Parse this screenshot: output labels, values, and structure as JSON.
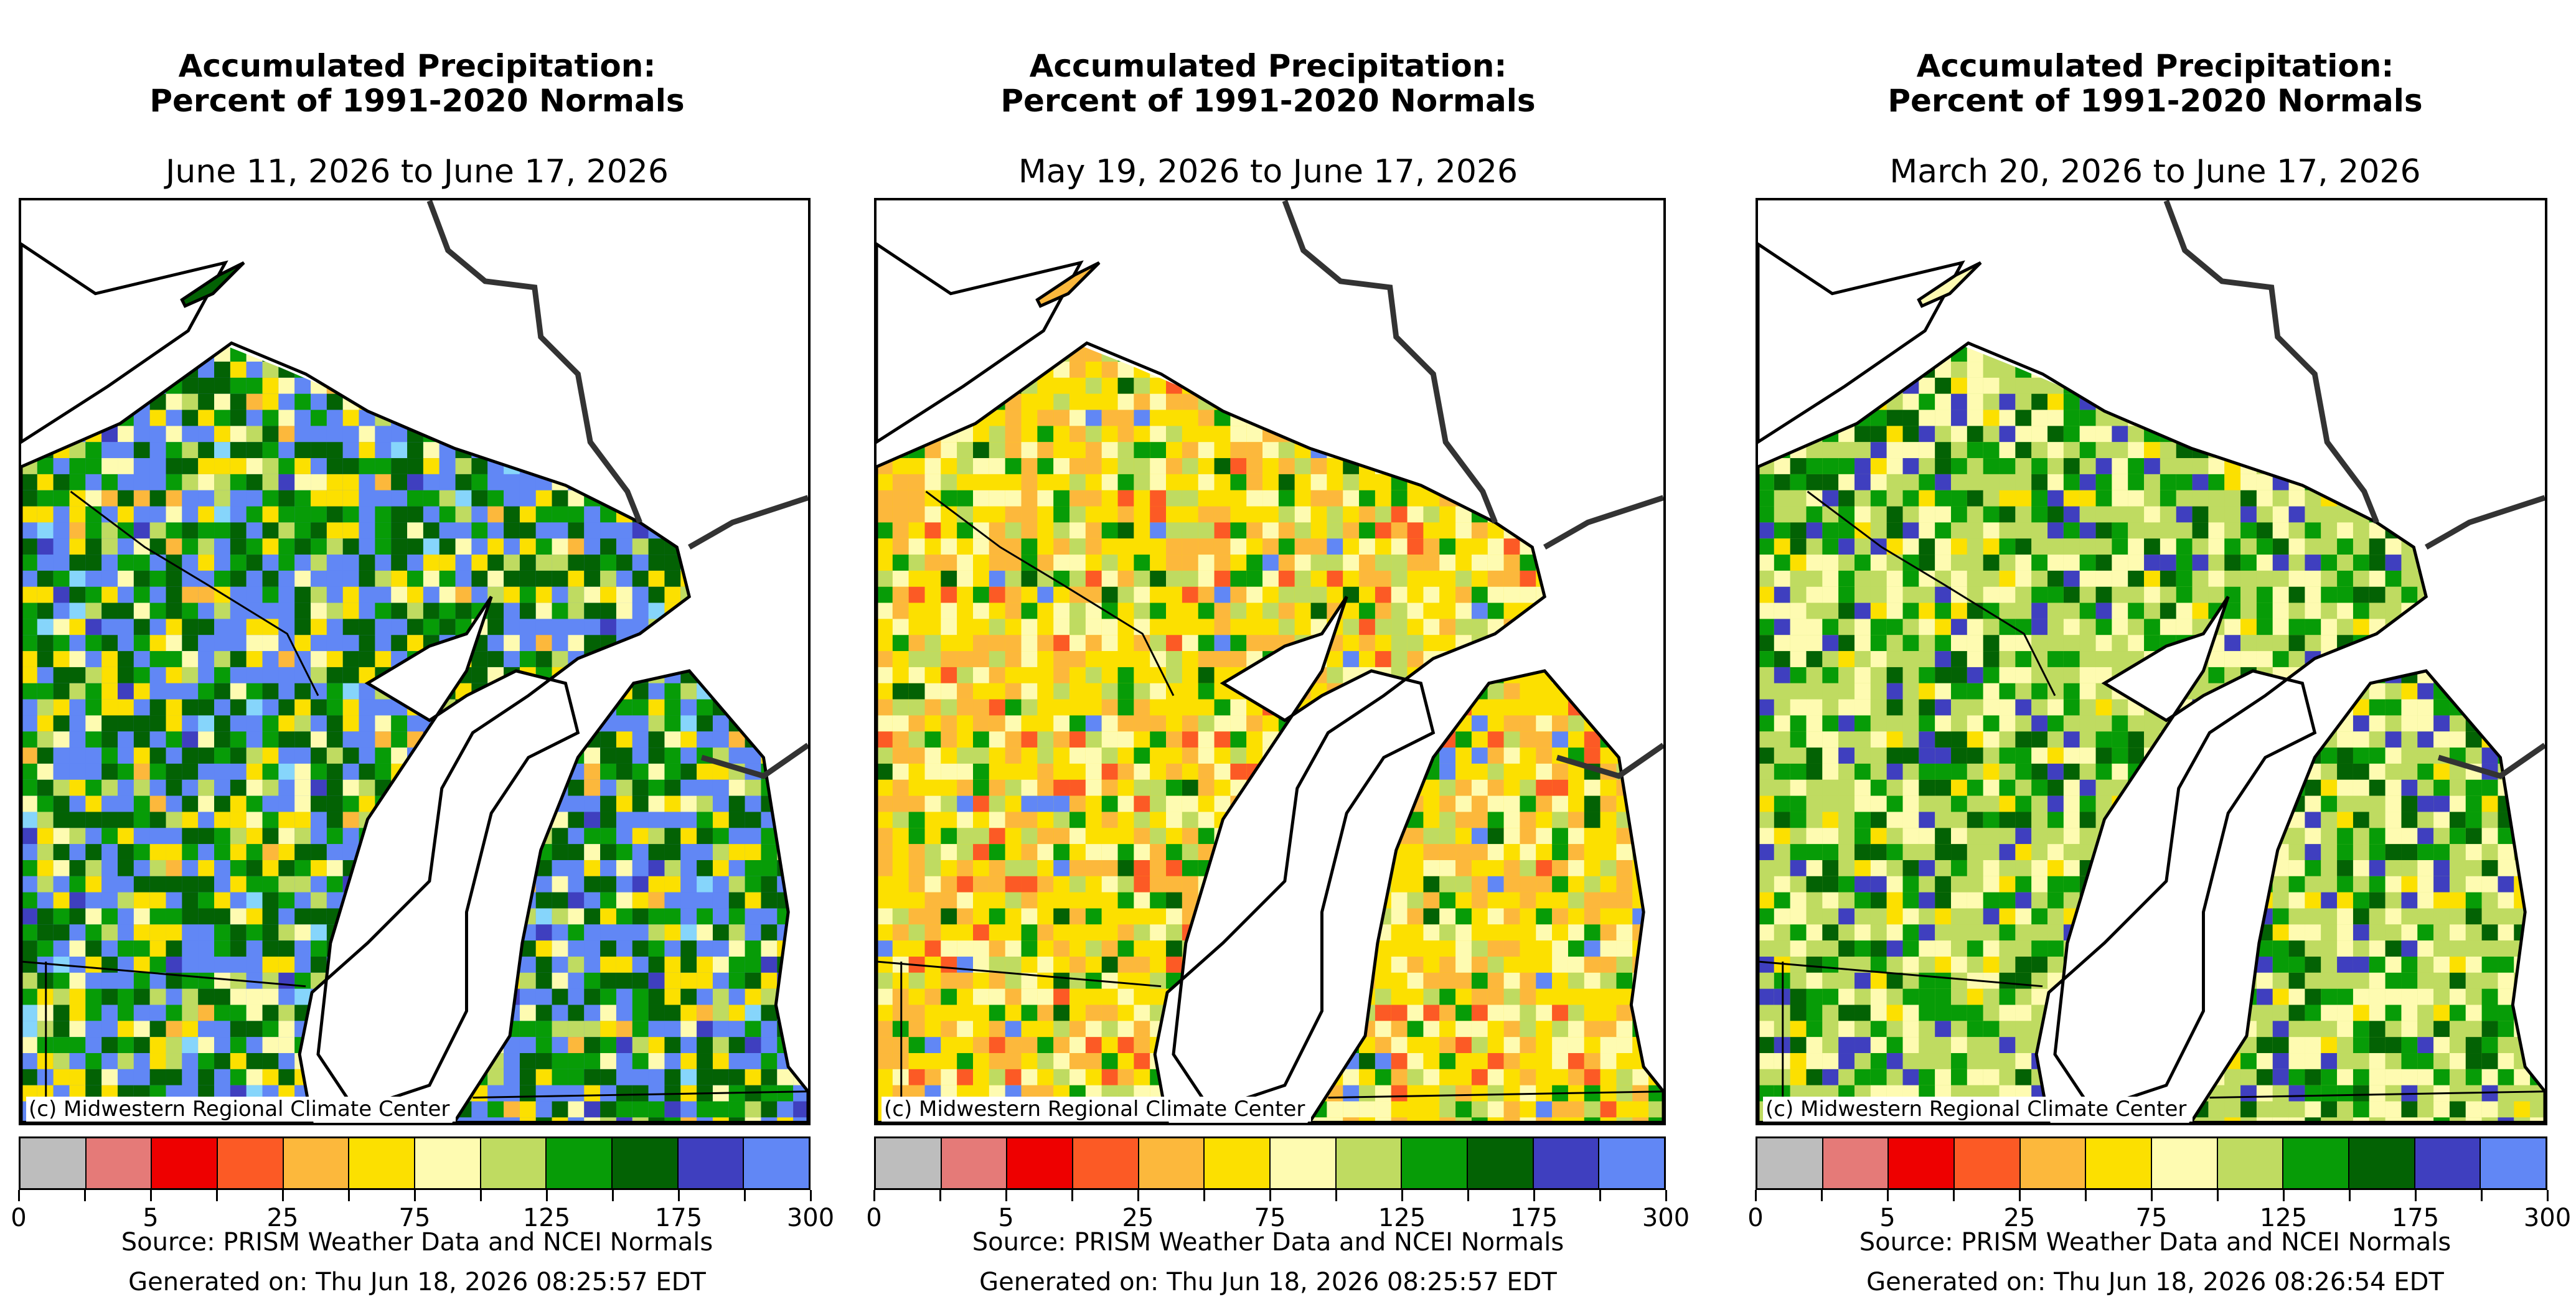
{
  "palette": {
    "bin_colors": [
      "#bdbdbd",
      "#e57a78",
      "#ee0000",
      "#fc5a25",
      "#fcb83c",
      "#fce000",
      "#fefbb1",
      "#bfdb61",
      "#079c07",
      "#036204",
      "#3f3fbf",
      "#6187f5",
      "#86d5fb"
    ],
    "water": "#ffffff",
    "border_line": "#333333",
    "state_line": "#000000"
  },
  "panels": [
    {
      "title": "Accumulated Precipitation:\nPercent of 1991-2020 Normals",
      "subtitle": "June 11, 2026 to June 17, 2026",
      "credit": "(c) Midwestern Regional Climate Center",
      "legend": {
        "bin_count": 12,
        "tick_labels": [
          "0",
          "5",
          "25",
          "75",
          "125",
          "175",
          "300"
        ],
        "tick_bin_index": [
          0,
          2,
          4,
          6,
          8,
          10,
          12
        ]
      },
      "source": "Source: PRISM Weather Data and NCEI Normals",
      "generated": "Generated on: Thu Jun 18, 2026 08:25:57 EDT",
      "dominant_bins": [
        11,
        9,
        8,
        5,
        6,
        7,
        4,
        10,
        12
      ]
    },
    {
      "title": "Accumulated Precipitation:\nPercent of 1991-2020 Normals",
      "subtitle": "May 19, 2026 to June 17, 2026",
      "credit": "(c) Midwestern Regional Climate Center",
      "legend": {
        "bin_count": 12,
        "tick_labels": [
          "0",
          "5",
          "25",
          "75",
          "125",
          "175",
          "300"
        ],
        "tick_bin_index": [
          0,
          2,
          4,
          6,
          8,
          10,
          12
        ]
      },
      "source": "Source: PRISM Weather Data and NCEI Normals",
      "generated": "Generated on: Thu Jun 18, 2026 08:25:57 EDT",
      "dominant_bins": [
        5,
        4,
        6,
        7,
        8,
        3,
        9,
        11
      ]
    },
    {
      "title": "Accumulated Precipitation:\nPercent of 1991-2020 Normals",
      "subtitle": "March 20, 2026 to June 17, 2026",
      "credit": "(c) Midwestern Regional Climate Center",
      "legend": {
        "bin_count": 12,
        "tick_labels": [
          "0",
          "5",
          "25",
          "75",
          "125",
          "175",
          "300"
        ],
        "tick_bin_index": [
          0,
          2,
          4,
          6,
          8,
          10,
          12
        ]
      },
      "source": "Source: PRISM Weather Data and NCEI Normals",
      "generated": "Generated on: Thu Jun 18, 2026 08:26:54 EDT",
      "dominant_bins": [
        7,
        6,
        8,
        9,
        10,
        5
      ]
    }
  ]
}
